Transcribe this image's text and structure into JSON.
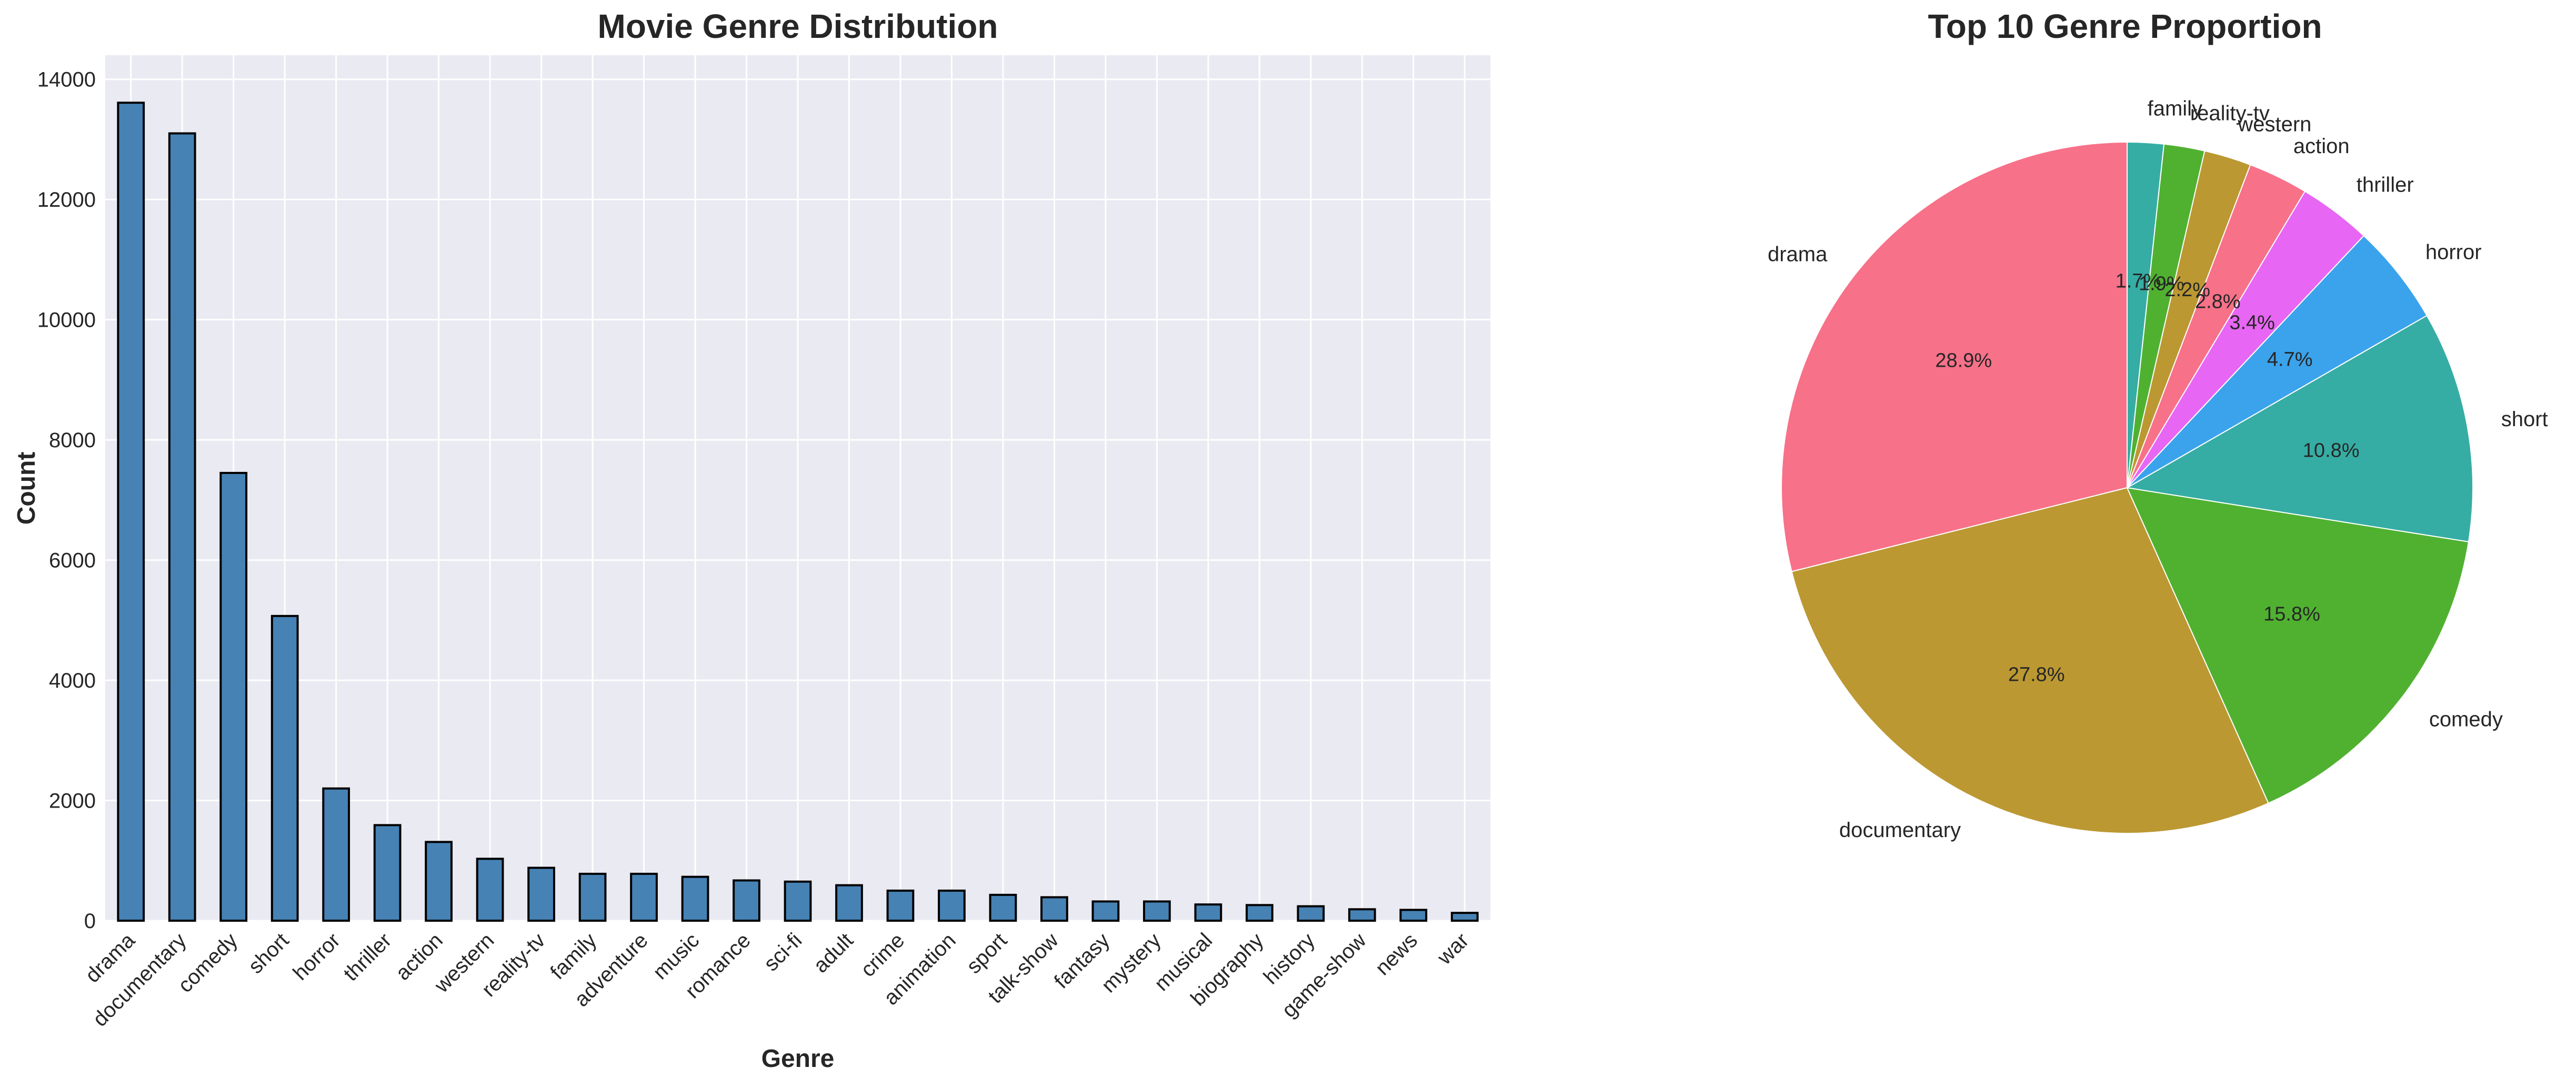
{
  "chart_data": [
    {
      "type": "bar",
      "title": "Movie Genre Distribution",
      "xlabel": "Genre",
      "ylabel": "Count",
      "ylim": [
        0,
        14400
      ],
      "yticks": [
        "0",
        "2000",
        "4000",
        "6000",
        "8000",
        "10000",
        "12000",
        "14000"
      ],
      "grid": true,
      "bar_color": "#4682b4",
      "edge_color": "#000000",
      "plot_background": "#eaeaf2",
      "categories": [
        "drama",
        "documentary",
        "comedy",
        "short",
        "horror",
        "thriller",
        "action",
        "western",
        "reality-tv",
        "family",
        "adventure",
        "music",
        "romance",
        "sci-fi",
        "adult",
        "crime",
        "animation",
        "sport",
        "talk-show",
        "fantasy",
        "mystery",
        "musical",
        "biography",
        "history",
        "game-show",
        "news",
        "war"
      ],
      "values": [
        13610,
        13100,
        7450,
        5070,
        2200,
        1590,
        1310,
        1030,
        880,
        780,
        780,
        730,
        670,
        650,
        590,
        500,
        500,
        430,
        390,
        320,
        320,
        270,
        260,
        240,
        190,
        180,
        130
      ]
    },
    {
      "type": "pie",
      "title": "Top 10 Genre Proportion",
      "start_angle": 90,
      "direction": "counterclockwise",
      "labels": [
        "drama",
        "documentary",
        "comedy",
        "short",
        "horror",
        "thriller",
        "action",
        "western",
        "reality-tv",
        "family"
      ],
      "values": [
        28.9,
        27.8,
        15.8,
        10.8,
        4.7,
        3.4,
        2.8,
        2.2,
        1.9,
        1.7
      ],
      "percent_labels": [
        "28.9%",
        "27.8%",
        "15.8%",
        "10.8%",
        "4.7%",
        "3.4%",
        "2.8%",
        "2.2%",
        "1.9%",
        "1.7%"
      ],
      "colors": [
        "#f77189",
        "#bb9832",
        "#50b131",
        "#36ada4",
        "#3ba3ec",
        "#e866f4",
        "#f77189",
        "#bb9832",
        "#50b131",
        "#36ada4"
      ]
    }
  ]
}
